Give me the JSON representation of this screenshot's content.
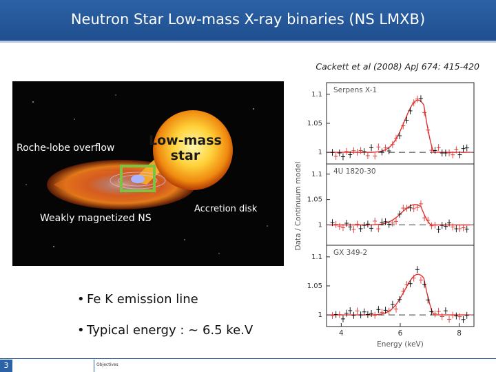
{
  "header": {
    "title": "Neutron Star Low-mass X-ray binaries (NS LMXB)"
  },
  "citation": "Cackett et al (2008) ApJ 674: 415-420",
  "illustration": {
    "label_roche": "Roche-lobe overflow",
    "label_star_line1": "Low-mass",
    "label_star_line2": "star",
    "label_ns": "Weakly magnetized NS",
    "label_disk": "Accretion disk",
    "highlight_color": "#7dc242"
  },
  "bullets": [
    "Fe K emission line",
    "Typical energy : ~ 6.5 ke.V"
  ],
  "footer": {
    "slide_number": "3",
    "section": "Objectives"
  },
  "chart_data": {
    "type": "line",
    "xlabel": "Energy (keV)",
    "ylabel": "Data / Continuum model",
    "x_ticks": [
      "4",
      "6",
      "8"
    ],
    "xlim": [
      3.5,
      8.5
    ],
    "panels": [
      {
        "name": "Serpens X-1",
        "y_ticks": [
          "1",
          "1.05",
          "1.1"
        ],
        "ylim": [
          0.98,
          1.12
        ],
        "peak_energy": 6.6,
        "peak_ratio": 1.09
      },
      {
        "name": "4U 1820-30",
        "y_ticks": [
          "1",
          "1.05",
          "1.1"
        ],
        "ylim": [
          0.96,
          1.12
        ],
        "peak_energy": 6.5,
        "peak_ratio": 1.04
      },
      {
        "name": "GX 349-2",
        "y_ticks": [
          "1",
          "1.05",
          "1.1"
        ],
        "ylim": [
          0.98,
          1.12
        ],
        "peak_energy": 6.6,
        "peak_ratio": 1.07
      }
    ],
    "series": [
      {
        "name": "model",
        "color": "#e03030"
      },
      {
        "name": "data",
        "color": "#000000"
      }
    ]
  }
}
